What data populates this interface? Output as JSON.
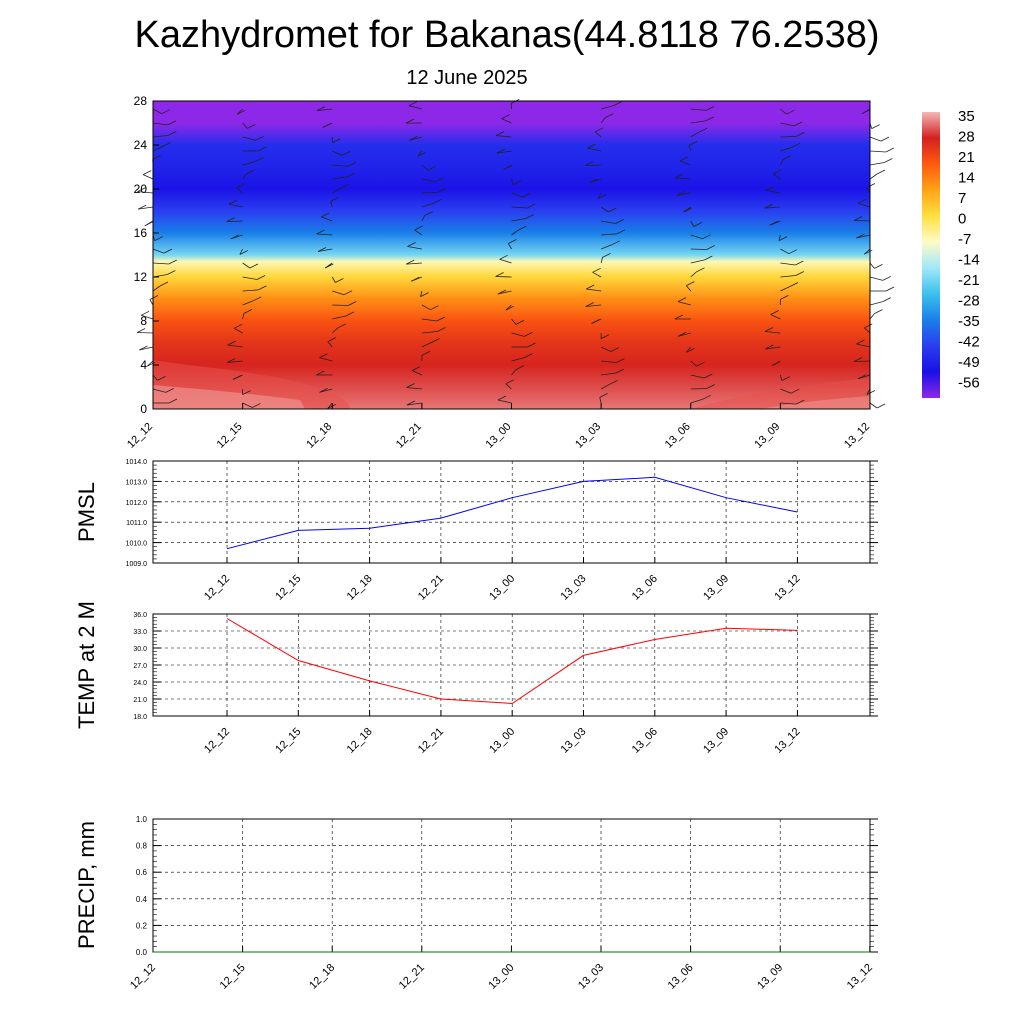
{
  "title": "Kazhydromet for Bakanas(44.8118 76.2538)",
  "subtitle": "12 June 2025",
  "chart_data": [
    {
      "type": "heatmap",
      "xlabel": "",
      "ylabel": "",
      "x": [
        "12_12",
        "12_15",
        "12_18",
        "12_21",
        "13_00",
        "13_03",
        "13_06",
        "13_09",
        "13_12"
      ],
      "ylim": [
        0,
        28
      ],
      "yticks": [
        "0",
        "4",
        "8",
        "12",
        "16",
        "20",
        "24",
        "28"
      ],
      "colorbar": {
        "labels": [
          "35",
          "28",
          "21",
          "14",
          "7",
          "0",
          "-7",
          "-14",
          "-21",
          "-28",
          "-35",
          "-42",
          "-49",
          "-56"
        ],
        "stops": [
          {
            "value": 35,
            "color": "#f3b9b6"
          },
          {
            "value": 28,
            "color": "#d42020"
          },
          {
            "value": 14,
            "color": "#ff5a10"
          },
          {
            "value": 7,
            "color": "#ffa317"
          },
          {
            "value": 0,
            "color": "#ffe040"
          },
          {
            "value": -7,
            "color": "#fffbc8"
          },
          {
            "value": -14,
            "color": "#9fe8f8"
          },
          {
            "value": -21,
            "color": "#3cc0ec"
          },
          {
            "value": -28,
            "color": "#1a7fe8"
          },
          {
            "value": -42,
            "color": "#2a3ef0"
          },
          {
            "value": -56,
            "color": "#1a10e6"
          },
          {
            "value": -63,
            "color": "#8e28e8"
          }
        ]
      },
      "profile": [
        {
          "height": 0,
          "temp": 32
        },
        {
          "height": 2,
          "temp": 30
        },
        {
          "height": 4,
          "temp": 27
        },
        {
          "height": 6,
          "temp": 23
        },
        {
          "height": 8,
          "temp": 16
        },
        {
          "height": 10,
          "temp": 9
        },
        {
          "height": 12,
          "temp": 1
        },
        {
          "height": 13.4,
          "temp": -6
        },
        {
          "height": 14,
          "temp": -17
        },
        {
          "height": 16,
          "temp": -28
        },
        {
          "height": 18,
          "temp": -42
        },
        {
          "height": 20,
          "temp": -55
        },
        {
          "height": 22,
          "temp": -50
        },
        {
          "height": 24,
          "temp": -47
        },
        {
          "height": 26,
          "temp": -63
        },
        {
          "height": 28,
          "temp": -63
        }
      ]
    },
    {
      "type": "line",
      "ylabel": "PMSL",
      "categories": [
        "12_12",
        "12_15",
        "12_18",
        "12_21",
        "13_00",
        "13_03",
        "13_06",
        "13_09",
        "13_12"
      ],
      "values": [
        1009.7,
        1010.6,
        1010.7,
        1011.2,
        1012.2,
        1013.0,
        1013.2,
        1012.2,
        1011.5
      ],
      "ylim": [
        1009.0,
        1014.0
      ],
      "yticks": [
        "1009.0",
        "1010.0",
        "1011.0",
        "1012.0",
        "1013.0",
        "1014.0"
      ],
      "color": "#0000ff",
      "grid": true
    },
    {
      "type": "line",
      "ylabel": "TEMP at 2 M",
      "categories": [
        "12_12",
        "12_15",
        "12_18",
        "12_21",
        "13_00",
        "13_03",
        "13_06",
        "13_09",
        "13_12"
      ],
      "values": [
        35.2,
        27.8,
        24.2,
        21.0,
        20.2,
        28.7,
        31.5,
        33.5,
        33.1
      ],
      "ylim": [
        18.0,
        36.0
      ],
      "yticks": [
        "18.0",
        "21.0",
        "24.0",
        "27.0",
        "30.0",
        "33.0",
        "36.0"
      ],
      "color": "#ff0000",
      "grid": true
    },
    {
      "type": "line",
      "ylabel": "PRECIP, mm",
      "categories": [
        "12_12",
        "12_15",
        "12_18",
        "12_21",
        "13_00",
        "13_03",
        "13_06",
        "13_09",
        "13_12"
      ],
      "values": [
        0,
        0,
        0,
        0,
        0,
        0,
        0,
        0,
        0
      ],
      "ylim": [
        0.0,
        1.0
      ],
      "yticks": [
        "0.0",
        "0.2",
        "0.4",
        "0.6",
        "0.8",
        "1.0"
      ],
      "color": "#007a00",
      "grid": true
    }
  ]
}
